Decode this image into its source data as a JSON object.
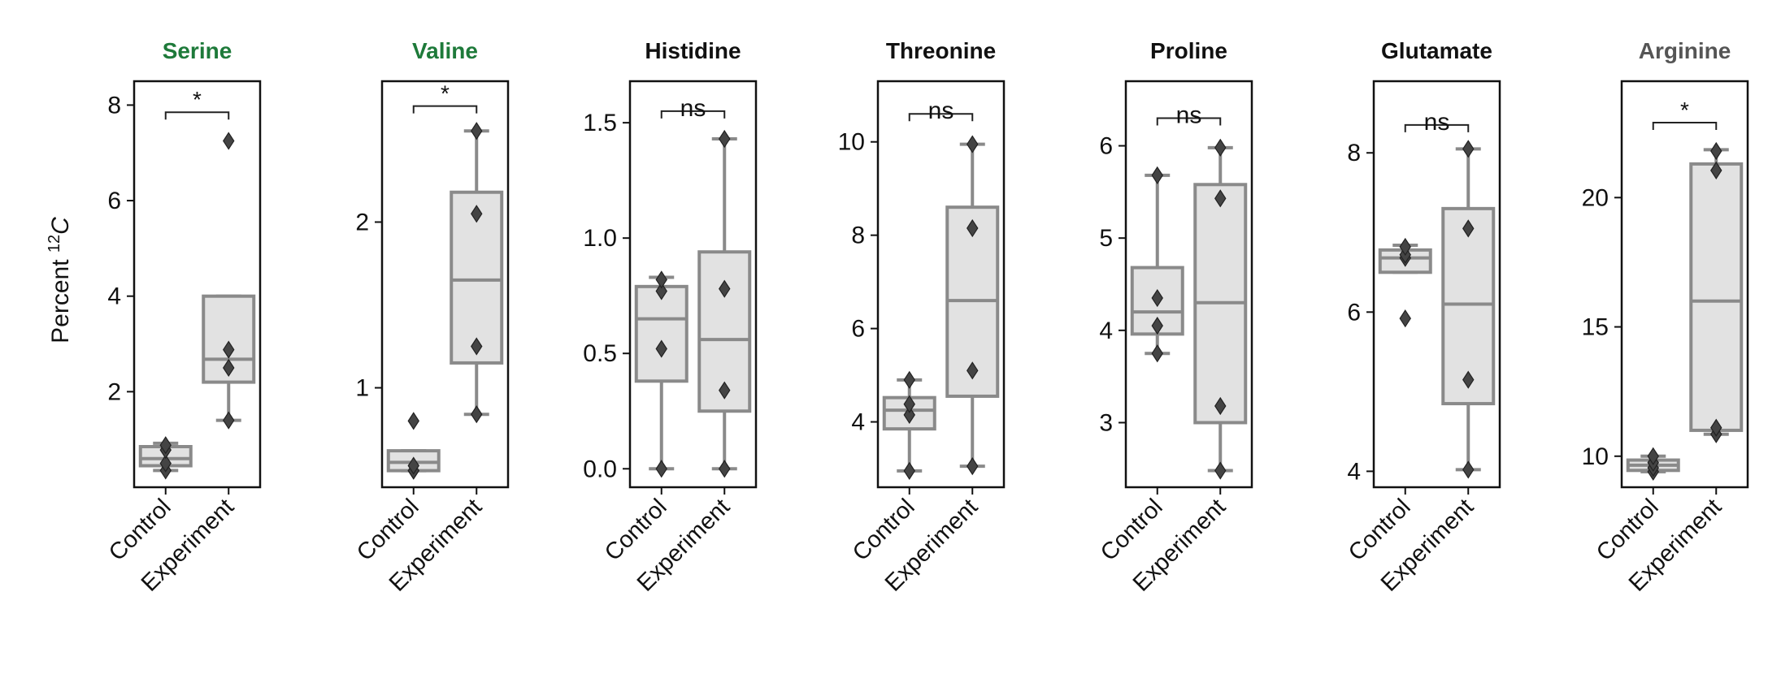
{
  "ylabel": {
    "prefix": "Percent ",
    "sup": "12",
    "italic": "C"
  },
  "colors": {
    "green": "#1e7a3a",
    "grey": "#555555",
    "black": "#111111",
    "box_fill": "#e2e2e2",
    "box_edge": "#8a8a8a",
    "point": "#444444"
  },
  "chart_data": [
    {
      "type": "box",
      "title": "Serine",
      "title_color": "#1e7a3a",
      "categories": [
        "Control",
        "Experiment"
      ],
      "ylim": [
        0,
        8.5
      ],
      "yticks": [
        2,
        4,
        6,
        8
      ],
      "ytick_labels": [
        "2",
        "4",
        "6",
        "8"
      ],
      "boxes": [
        {
          "whislo": 0.35,
          "q1": 0.45,
          "med": 0.6,
          "q3": 0.85,
          "whishi": 0.92
        },
        {
          "whislo": 1.4,
          "q1": 2.2,
          "med": 2.68,
          "q3": 4.0,
          "whishi": 4.0
        }
      ],
      "points": [
        [
          0.35,
          0.5,
          0.78,
          0.88
        ],
        [
          1.4,
          2.5,
          2.88,
          7.25
        ]
      ],
      "significance": "*",
      "bracket_y": 7.85
    },
    {
      "type": "box",
      "title": "Valine",
      "title_color": "#1e7a3a",
      "categories": [
        "Control",
        "Experiment"
      ],
      "ylim": [
        0.4,
        2.85
      ],
      "yticks": [
        1,
        2
      ],
      "ytick_labels": [
        "1",
        "2"
      ],
      "boxes": [
        {
          "whislo": 0.5,
          "q1": 0.5,
          "med": 0.55,
          "q3": 0.62,
          "whishi": 0.62
        },
        {
          "whislo": 0.84,
          "q1": 1.15,
          "med": 1.65,
          "q3": 2.18,
          "whishi": 2.55
        }
      ],
      "points": [
        [
          0.5,
          0.5,
          0.53,
          0.8
        ],
        [
          0.84,
          1.25,
          2.05,
          2.55
        ]
      ],
      "significance": "*",
      "bracket_y": 2.7
    },
    {
      "type": "box",
      "title": "Histidine",
      "title_color": "#111111",
      "categories": [
        "Control",
        "Experiment"
      ],
      "ylim": [
        -0.08,
        1.68
      ],
      "yticks": [
        0.0,
        0.5,
        1.0,
        1.5
      ],
      "ytick_labels": [
        "0.0",
        "0.5",
        "1.0",
        "1.5"
      ],
      "boxes": [
        {
          "whislo": 0.0,
          "q1": 0.38,
          "med": 0.65,
          "q3": 0.79,
          "whishi": 0.83
        },
        {
          "whislo": 0.0,
          "q1": 0.25,
          "med": 0.56,
          "q3": 0.94,
          "whishi": 1.43
        }
      ],
      "points": [
        [
          0.0,
          0.52,
          0.77,
          0.82
        ],
        [
          0.0,
          0.34,
          0.78,
          1.43
        ]
      ],
      "significance": "ns",
      "bracket_y": 1.55
    },
    {
      "type": "box",
      "title": "Threonine",
      "title_color": "#111111",
      "categories": [
        "Control",
        "Experiment"
      ],
      "ylim": [
        2.6,
        11.3
      ],
      "yticks": [
        4,
        6,
        8,
        10
      ],
      "ytick_labels": [
        "4",
        "6",
        "8",
        "10"
      ],
      "boxes": [
        {
          "whislo": 2.95,
          "q1": 3.85,
          "med": 4.25,
          "q3": 4.52,
          "whishi": 4.9
        },
        {
          "whislo": 3.05,
          "q1": 4.55,
          "med": 6.6,
          "q3": 8.6,
          "whishi": 9.95
        }
      ],
      "points": [
        [
          2.95,
          4.15,
          4.38,
          4.9
        ],
        [
          3.05,
          5.1,
          8.15,
          9.95
        ]
      ],
      "significance": "ns",
      "bracket_y": 10.6
    },
    {
      "type": "box",
      "title": "Proline",
      "title_color": "#111111",
      "categories": [
        "Control",
        "Experiment"
      ],
      "ylim": [
        2.3,
        6.7
      ],
      "yticks": [
        3,
        4,
        5,
        6
      ],
      "ytick_labels": [
        "3",
        "4",
        "5",
        "6"
      ],
      "boxes": [
        {
          "whislo": 3.75,
          "q1": 3.96,
          "med": 4.2,
          "q3": 4.68,
          "whishi": 5.68
        },
        {
          "whislo": 2.48,
          "q1": 3.0,
          "med": 4.3,
          "q3": 5.58,
          "whishi": 5.98
        }
      ],
      "points": [
        [
          3.75,
          4.05,
          4.35,
          5.68
        ],
        [
          2.48,
          3.18,
          5.43,
          5.98
        ]
      ],
      "significance": "ns",
      "bracket_y": 6.3
    },
    {
      "type": "box",
      "title": "Glutamate",
      "title_color": "#111111",
      "categories": [
        "Control",
        "Experiment"
      ],
      "ylim": [
        3.8,
        8.9
      ],
      "yticks": [
        4,
        6,
        8
      ],
      "ytick_labels": [
        "4",
        "6",
        "8"
      ],
      "boxes": [
        {
          "whislo": 6.5,
          "q1": 6.5,
          "med": 6.68,
          "q3": 6.78,
          "whishi": 6.84
        },
        {
          "whislo": 4.02,
          "q1": 4.85,
          "med": 6.1,
          "q3": 7.3,
          "whishi": 8.05
        }
      ],
      "points": [
        [
          5.92,
          6.68,
          6.72,
          6.82
        ],
        [
          4.02,
          5.15,
          7.05,
          8.05
        ]
      ],
      "significance": "ns",
      "bracket_y": 8.35
    },
    {
      "type": "box",
      "title": "Arginine",
      "title_color": "#555555",
      "categories": [
        "Control",
        "Experiment"
      ],
      "ylim": [
        8.8,
        24.5
      ],
      "yticks": [
        10,
        15,
        20
      ],
      "ytick_labels": [
        "10",
        "15",
        "20"
      ],
      "boxes": [
        {
          "whislo": 9.4,
          "q1": 9.45,
          "med": 9.65,
          "q3": 9.85,
          "whishi": 10.0
        },
        {
          "whislo": 10.85,
          "q1": 11.0,
          "med": 16.0,
          "q3": 21.3,
          "whishi": 21.85
        }
      ],
      "points": [
        [
          9.4,
          9.55,
          9.75,
          10.0
        ],
        [
          10.85,
          11.1,
          21.05,
          21.8
        ]
      ],
      "significance": "*",
      "bracket_y": 22.9
    }
  ]
}
